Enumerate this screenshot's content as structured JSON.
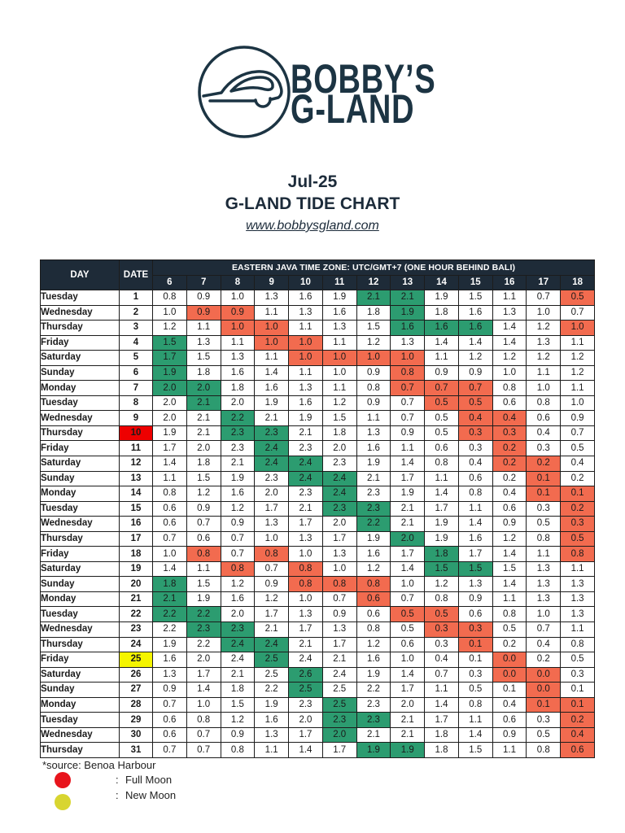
{
  "brand": {
    "line1": "BOBBY’S",
    "line2": "G-LAND",
    "logo_icon": "car-wave-logo-icon",
    "color": "#1c3443"
  },
  "header": {
    "month": "Jul-25",
    "link": "www.bobbysgland.com"
  },
  "colors": {
    "header_bg": "#1e2b38",
    "green_cell": "#2c9c70",
    "red_cell": "#f26b4f",
    "title": "#1c2b3a"
  },
  "chart_data": {
    "type": "table",
    "title": "G-LAND TIDE CHART",
    "column_headers": {
      "day": "DAY",
      "date": "DATE",
      "time_zone": "EASTERN JAVA TIME ZONE: UTC/GMT+7 (ONE HOUR BEHIND BALI)"
    },
    "hours": [
      6,
      7,
      8,
      9,
      10,
      11,
      12,
      13,
      14,
      15,
      16,
      17,
      18
    ],
    "rows": [
      {
        "day": "Tuesday",
        "date": 1,
        "values": [
          0.8,
          0.9,
          1.0,
          1.3,
          1.6,
          1.9,
          2.1,
          2.1,
          1.9,
          1.5,
          1.1,
          0.7,
          0.5
        ],
        "green_hours": [
          12,
          13
        ],
        "red_hours": [
          18
        ]
      },
      {
        "day": "Wednesday",
        "date": 2,
        "values": [
          1.0,
          0.9,
          0.9,
          1.1,
          1.3,
          1.6,
          1.8,
          1.9,
          1.8,
          1.6,
          1.3,
          1.0,
          0.7
        ],
        "green_hours": [
          13
        ],
        "red_hours": [
          7,
          8
        ]
      },
      {
        "day": "Thursday",
        "date": 3,
        "values": [
          1.2,
          1.1,
          1.0,
          1.0,
          1.1,
          1.3,
          1.5,
          1.6,
          1.6,
          1.6,
          1.4,
          1.2,
          1.0
        ],
        "green_hours": [
          13,
          14,
          15
        ],
        "red_hours": [
          8,
          9,
          18
        ]
      },
      {
        "day": "Friday",
        "date": 4,
        "values": [
          1.5,
          1.3,
          1.1,
          1.0,
          1.0,
          1.1,
          1.2,
          1.3,
          1.4,
          1.4,
          1.4,
          1.3,
          1.1
        ],
        "green_hours": [
          6
        ],
        "red_hours": [
          9,
          10
        ]
      },
      {
        "day": "Saturday",
        "date": 5,
        "values": [
          1.7,
          1.5,
          1.3,
          1.1,
          1.0,
          1.0,
          1.0,
          1.0,
          1.1,
          1.2,
          1.2,
          1.2,
          1.2
        ],
        "green_hours": [
          6
        ],
        "red_hours": [
          10,
          11,
          12,
          13
        ]
      },
      {
        "day": "Sunday",
        "date": 6,
        "values": [
          1.9,
          1.8,
          1.6,
          1.4,
          1.1,
          1.0,
          0.9,
          0.8,
          0.9,
          0.9,
          1.0,
          1.1,
          1.2
        ],
        "green_hours": [
          6
        ],
        "red_hours": [
          13
        ]
      },
      {
        "day": "Monday",
        "date": 7,
        "values": [
          2.0,
          2.0,
          1.8,
          1.6,
          1.3,
          1.1,
          0.8,
          0.7,
          0.7,
          0.7,
          0.8,
          1.0,
          1.1
        ],
        "green_hours": [
          6,
          7
        ],
        "red_hours": [
          13,
          14,
          15
        ]
      },
      {
        "day": "Tuesday",
        "date": 8,
        "values": [
          2.0,
          2.1,
          2.0,
          1.9,
          1.6,
          1.2,
          0.9,
          0.7,
          0.5,
          0.5,
          0.6,
          0.8,
          1.0
        ],
        "green_hours": [
          7
        ],
        "red_hours": [
          14,
          15
        ]
      },
      {
        "day": "Wednesday",
        "date": 9,
        "values": [
          2.0,
          2.1,
          2.2,
          2.1,
          1.9,
          1.5,
          1.1,
          0.7,
          0.5,
          0.4,
          0.4,
          0.6,
          0.9
        ],
        "green_hours": [
          8
        ],
        "red_hours": [
          15,
          16
        ]
      },
      {
        "day": "Thursday",
        "date": 10,
        "date_color": "#ee0000",
        "values": [
          1.9,
          2.1,
          2.3,
          2.3,
          2.1,
          1.8,
          1.3,
          0.9,
          0.5,
          0.3,
          0.3,
          0.4,
          0.7
        ],
        "green_hours": [
          8,
          9
        ],
        "red_hours": [
          15,
          16
        ]
      },
      {
        "day": "Friday",
        "date": 11,
        "values": [
          1.7,
          2.0,
          2.3,
          2.4,
          2.3,
          2.0,
          1.6,
          1.1,
          0.6,
          0.3,
          0.2,
          0.3,
          0.5
        ],
        "green_hours": [
          9
        ],
        "red_hours": [
          16
        ]
      },
      {
        "day": "Saturday",
        "date": 12,
        "values": [
          1.4,
          1.8,
          2.1,
          2.4,
          2.4,
          2.3,
          1.9,
          1.4,
          0.8,
          0.4,
          0.2,
          0.2,
          0.4
        ],
        "green_hours": [
          9,
          10
        ],
        "red_hours": [
          16,
          17
        ]
      },
      {
        "day": "Sunday",
        "date": 13,
        "values": [
          1.1,
          1.5,
          1.9,
          2.3,
          2.4,
          2.4,
          2.1,
          1.7,
          1.1,
          0.6,
          0.2,
          0.1,
          0.2
        ],
        "green_hours": [
          10,
          11
        ],
        "red_hours": [
          17
        ]
      },
      {
        "day": "Monday",
        "date": 14,
        "values": [
          0.8,
          1.2,
          1.6,
          2.0,
          2.3,
          2.4,
          2.3,
          1.9,
          1.4,
          0.8,
          0.4,
          0.1,
          0.1
        ],
        "green_hours": [
          11
        ],
        "red_hours": [
          17,
          18
        ]
      },
      {
        "day": "Tuesday",
        "date": 15,
        "values": [
          0.6,
          0.9,
          1.2,
          1.7,
          2.1,
          2.3,
          2.3,
          2.1,
          1.7,
          1.1,
          0.6,
          0.3,
          0.2
        ],
        "green_hours": [
          11,
          12
        ],
        "red_hours": [
          18
        ]
      },
      {
        "day": "Wednesday",
        "date": 16,
        "values": [
          0.6,
          0.7,
          0.9,
          1.3,
          1.7,
          2.0,
          2.2,
          2.1,
          1.9,
          1.4,
          0.9,
          0.5,
          0.3
        ],
        "green_hours": [
          12
        ],
        "red_hours": [
          18
        ]
      },
      {
        "day": "Thursday",
        "date": 17,
        "values": [
          0.7,
          0.6,
          0.7,
          1.0,
          1.3,
          1.7,
          1.9,
          2.0,
          1.9,
          1.6,
          1.2,
          0.8,
          0.5
        ],
        "green_hours": [
          13
        ],
        "red_hours": [
          18
        ]
      },
      {
        "day": "Friday",
        "date": 18,
        "values": [
          1.0,
          0.8,
          0.7,
          0.8,
          1.0,
          1.3,
          1.6,
          1.7,
          1.8,
          1.7,
          1.4,
          1.1,
          0.8
        ],
        "green_hours": [
          14
        ],
        "red_hours": [
          7,
          9,
          18
        ]
      },
      {
        "day": "Saturday",
        "date": 19,
        "values": [
          1.4,
          1.1,
          0.8,
          0.7,
          0.8,
          1.0,
          1.2,
          1.4,
          1.5,
          1.5,
          1.5,
          1.3,
          1.1
        ],
        "green_hours": [
          14,
          15
        ],
        "red_hours": [
          8,
          10
        ]
      },
      {
        "day": "Sunday",
        "date": 20,
        "values": [
          1.8,
          1.5,
          1.2,
          0.9,
          0.8,
          0.8,
          0.8,
          1.0,
          1.2,
          1.3,
          1.4,
          1.3,
          1.3
        ],
        "green_hours": [
          6
        ],
        "red_hours": [
          10,
          11,
          12
        ]
      },
      {
        "day": "Monday",
        "date": 21,
        "values": [
          2.1,
          1.9,
          1.6,
          1.2,
          1.0,
          0.7,
          0.6,
          0.7,
          0.8,
          0.9,
          1.1,
          1.3,
          1.3
        ],
        "green_hours": [
          6
        ],
        "red_hours": [
          12
        ]
      },
      {
        "day": "Tuesday",
        "date": 22,
        "values": [
          2.2,
          2.2,
          2.0,
          1.7,
          1.3,
          0.9,
          0.6,
          0.5,
          0.5,
          0.6,
          0.8,
          1.0,
          1.3
        ],
        "green_hours": [
          6,
          7
        ],
        "red_hours": [
          13,
          14
        ]
      },
      {
        "day": "Wednesday",
        "date": 23,
        "values": [
          2.2,
          2.3,
          2.3,
          2.1,
          1.7,
          1.3,
          0.8,
          0.5,
          0.3,
          0.3,
          0.5,
          0.7,
          1.1
        ],
        "green_hours": [
          7,
          8
        ],
        "red_hours": [
          14,
          15
        ]
      },
      {
        "day": "Thursday",
        "date": 24,
        "values": [
          1.9,
          2.2,
          2.4,
          2.4,
          2.1,
          1.7,
          1.2,
          0.6,
          0.3,
          0.1,
          0.2,
          0.4,
          0.8
        ],
        "green_hours": [
          8,
          9
        ],
        "red_hours": [
          15
        ]
      },
      {
        "day": "Friday",
        "date": 25,
        "date_color": "#f5f500",
        "values": [
          1.6,
          2.0,
          2.4,
          2.5,
          2.4,
          2.1,
          1.6,
          1.0,
          0.4,
          0.1,
          0.0,
          0.2,
          0.5
        ],
        "green_hours": [
          9
        ],
        "red_hours": [
          16
        ]
      },
      {
        "day": "Saturday",
        "date": 26,
        "values": [
          1.3,
          1.7,
          2.1,
          2.5,
          2.6,
          2.4,
          1.9,
          1.4,
          0.7,
          0.3,
          0.0,
          0.0,
          0.3
        ],
        "green_hours": [
          10
        ],
        "red_hours": [
          16,
          17
        ]
      },
      {
        "day": "Sunday",
        "date": 27,
        "values": [
          0.9,
          1.4,
          1.8,
          2.2,
          2.5,
          2.5,
          2.2,
          1.7,
          1.1,
          0.5,
          0.1,
          0.0,
          0.1
        ],
        "green_hours": [
          10
        ],
        "red_hours": [
          17
        ]
      },
      {
        "day": "Monday",
        "date": 28,
        "values": [
          0.7,
          1.0,
          1.5,
          1.9,
          2.3,
          2.5,
          2.3,
          2.0,
          1.4,
          0.8,
          0.4,
          0.1,
          0.1
        ],
        "green_hours": [
          11
        ],
        "red_hours": [
          17,
          18
        ]
      },
      {
        "day": "Tuesday",
        "date": 29,
        "values": [
          0.6,
          0.8,
          1.2,
          1.6,
          2.0,
          2.3,
          2.3,
          2.1,
          1.7,
          1.1,
          0.6,
          0.3,
          0.2
        ],
        "green_hours": [
          11,
          12
        ],
        "red_hours": [
          18
        ]
      },
      {
        "day": "Wednesday",
        "date": 30,
        "values": [
          0.6,
          0.7,
          0.9,
          1.3,
          1.7,
          2.0,
          2.1,
          2.1,
          1.8,
          1.4,
          0.9,
          0.5,
          0.4
        ],
        "green_hours": [
          11
        ],
        "red_hours": [
          18
        ]
      },
      {
        "day": "Thursday",
        "date": 31,
        "values": [
          0.7,
          0.7,
          0.8,
          1.1,
          1.4,
          1.7,
          1.9,
          1.9,
          1.8,
          1.5,
          1.1,
          0.8,
          0.6
        ],
        "green_hours": [
          12,
          13
        ],
        "red_hours": [
          18
        ]
      }
    ]
  },
  "footer": {
    "source": "*source: Benoa Harbour",
    "legend": [
      {
        "icon": "red-dot-icon",
        "color": "#e8141c",
        "separator": ":",
        "label": "Full Moon"
      },
      {
        "icon": "yellow-dot-icon",
        "color": "#d8d530",
        "separator": ":",
        "label": "New Moon"
      }
    ]
  }
}
